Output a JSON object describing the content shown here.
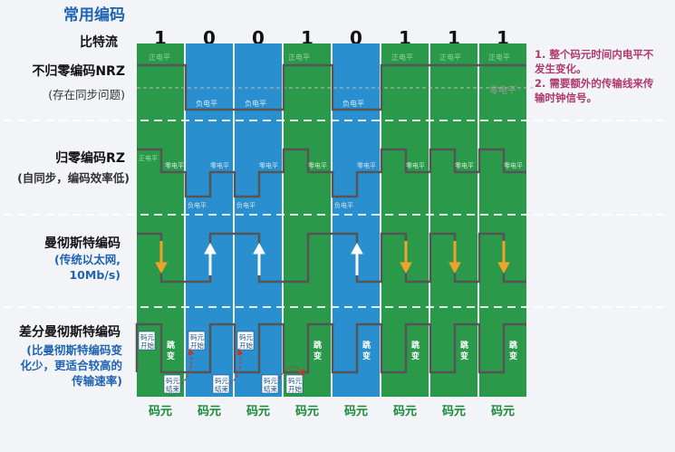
{
  "title": "常用编码",
  "bitstream_label": "比特流",
  "bits": [
    "1",
    "0",
    "0",
    "1",
    "0",
    "1",
    "1",
    "1"
  ],
  "rows": [
    {
      "name": "不归零编码NRZ",
      "note": "(存在同步问题)"
    },
    {
      "name": "归零编码RZ",
      "note": "(自同步，编码效率低)"
    },
    {
      "name": "曼彻斯特编码",
      "note1": "(传统以太网,",
      "note2": "10Mb/s)"
    },
    {
      "name": "差分曼彻斯特编码",
      "note1": "(比曼彻斯特编码变",
      "note2": "化少，更适合较高的",
      "note3": "传输速率)"
    }
  ],
  "nrz_notes": [
    "1. 整个码元时间内电平不",
    "发生变化。",
    "2. 需要额外的传输线来传",
    "输时钟信号。"
  ],
  "labels": {
    "high": "正电平",
    "low": "负电平",
    "zero": "零电平",
    "start": [
      "码元",
      "开始"
    ],
    "end": [
      "码元",
      "结束"
    ],
    "jump": [
      "跳",
      "变"
    ]
  },
  "codeword_label": "码元",
  "colors": {
    "green": "#2a9a4a",
    "blue": "#2a8fcf",
    "signal": "#555555",
    "title": "#1f64b0",
    "note": "#b03a6e",
    "arrow_down": "#f0a32a",
    "arrow_up": "#ffffff"
  }
}
